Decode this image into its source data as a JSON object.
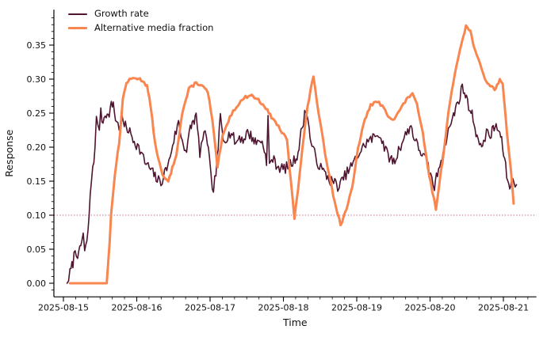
{
  "chart_data": {
    "type": "line",
    "title": "",
    "xlabel": "Time",
    "ylabel": "Response",
    "grid": false,
    "legend_position": "upper-left",
    "background": "#ffffff",
    "axis_color": "#000000",
    "x_tick_labels": [
      "2025-08-15",
      "2025-08-16",
      "2025-08-17",
      "2025-08-18",
      "2025-08-19",
      "2025-08-20",
      "2025-08-21"
    ],
    "x_tick_days": [
      0,
      1,
      2,
      3,
      4,
      5,
      6
    ],
    "x_minor_per_day": 6,
    "y_tick_labels": [
      "0.00",
      "0.05",
      "0.10",
      "0.15",
      "0.20",
      "0.25",
      "0.30",
      "0.35"
    ],
    "y_tick_values": [
      0.0,
      0.05,
      0.1,
      0.15,
      0.2,
      0.25,
      0.3,
      0.35
    ],
    "y_minor_step": 0.01,
    "xlim_days": [
      -0.13,
      6.45
    ],
    "ylim": [
      -0.02,
      0.402
    ],
    "reference_line": {
      "y": 0.1,
      "color": "#c45c78",
      "style": "dotted"
    },
    "series": [
      {
        "name": "Growth rate",
        "color": "#4f1530",
        "line_width": 1.6,
        "noise_amp": 0.008,
        "noise_step": 0.016,
        "seed": 7,
        "points": [
          [
            0.05,
            0.0
          ],
          [
            0.09,
            0.015
          ],
          [
            0.13,
            0.03
          ],
          [
            0.16,
            0.05
          ],
          [
            0.21,
            0.04
          ],
          [
            0.25,
            0.062
          ],
          [
            0.27,
            0.073
          ],
          [
            0.29,
            0.046
          ],
          [
            0.32,
            0.058
          ],
          [
            0.35,
            0.1
          ],
          [
            0.38,
            0.15
          ],
          [
            0.4,
            0.172
          ],
          [
            0.43,
            0.195
          ],
          [
            0.45,
            0.24
          ],
          [
            0.49,
            0.23
          ],
          [
            0.51,
            0.25
          ],
          [
            0.54,
            0.236
          ],
          [
            0.57,
            0.252
          ],
          [
            0.61,
            0.244
          ],
          [
            0.64,
            0.258
          ],
          [
            0.68,
            0.265
          ],
          [
            0.71,
            0.242
          ],
          [
            0.76,
            0.228
          ],
          [
            0.79,
            0.246
          ],
          [
            0.83,
            0.232
          ],
          [
            0.89,
            0.225
          ],
          [
            0.95,
            0.212
          ],
          [
            1.01,
            0.202
          ],
          [
            1.06,
            0.192
          ],
          [
            1.11,
            0.178
          ],
          [
            1.17,
            0.17
          ],
          [
            1.22,
            0.162
          ],
          [
            1.28,
            0.152
          ],
          [
            1.33,
            0.148
          ],
          [
            1.38,
            0.162
          ],
          [
            1.44,
            0.178
          ],
          [
            1.49,
            0.205
          ],
          [
            1.57,
            0.236
          ],
          [
            1.62,
            0.21
          ],
          [
            1.68,
            0.193
          ],
          [
            1.73,
            0.228
          ],
          [
            1.77,
            0.238
          ],
          [
            1.81,
            0.245
          ],
          [
            1.86,
            0.192
          ],
          [
            1.9,
            0.212
          ],
          [
            1.95,
            0.22
          ],
          [
            1.99,
            0.182
          ],
          [
            2.03,
            0.131
          ],
          [
            2.08,
            0.162
          ],
          [
            2.11,
            0.2
          ],
          [
            2.14,
            0.244
          ],
          [
            2.18,
            0.212
          ],
          [
            2.24,
            0.216
          ],
          [
            2.29,
            0.222
          ],
          [
            2.35,
            0.205
          ],
          [
            2.4,
            0.216
          ],
          [
            2.45,
            0.21
          ],
          [
            2.51,
            0.222
          ],
          [
            2.57,
            0.215
          ],
          [
            2.63,
            0.206
          ],
          [
            2.68,
            0.212
          ],
          [
            2.74,
            0.2
          ],
          [
            2.77,
            0.172
          ],
          [
            2.79,
            0.245
          ],
          [
            2.81,
            0.172
          ],
          [
            2.84,
            0.185
          ],
          [
            2.9,
            0.175
          ],
          [
            2.95,
            0.17
          ],
          [
            3.01,
            0.168
          ],
          [
            3.06,
            0.172
          ],
          [
            3.11,
            0.176
          ],
          [
            3.16,
            0.182
          ],
          [
            3.2,
            0.192
          ],
          [
            3.24,
            0.22
          ],
          [
            3.29,
            0.248
          ],
          [
            3.32,
            0.255
          ],
          [
            3.35,
            0.225
          ],
          [
            3.39,
            0.2
          ],
          [
            3.44,
            0.186
          ],
          [
            3.49,
            0.172
          ],
          [
            3.53,
            0.166
          ],
          [
            3.59,
            0.158
          ],
          [
            3.64,
            0.151
          ],
          [
            3.7,
            0.148
          ],
          [
            3.74,
            0.143
          ],
          [
            3.76,
            0.141
          ],
          [
            3.82,
            0.155
          ],
          [
            3.87,
            0.163
          ],
          [
            3.92,
            0.171
          ],
          [
            3.98,
            0.181
          ],
          [
            4.03,
            0.191
          ],
          [
            4.09,
            0.2
          ],
          [
            4.14,
            0.208
          ],
          [
            4.19,
            0.211
          ],
          [
            4.25,
            0.216
          ],
          [
            4.3,
            0.221
          ],
          [
            4.36,
            0.206
          ],
          [
            4.41,
            0.191
          ],
          [
            4.46,
            0.183
          ],
          [
            4.52,
            0.178
          ],
          [
            4.57,
            0.196
          ],
          [
            4.63,
            0.21
          ],
          [
            4.68,
            0.221
          ],
          [
            4.74,
            0.232
          ],
          [
            4.78,
            0.215
          ],
          [
            4.83,
            0.201
          ],
          [
            4.89,
            0.191
          ],
          [
            4.94,
            0.181
          ],
          [
            4.99,
            0.165
          ],
          [
            5.04,
            0.147
          ],
          [
            5.06,
            0.141
          ],
          [
            5.1,
            0.162
          ],
          [
            5.15,
            0.182
          ],
          [
            5.19,
            0.201
          ],
          [
            5.23,
            0.216
          ],
          [
            5.27,
            0.231
          ],
          [
            5.32,
            0.246
          ],
          [
            5.36,
            0.261
          ],
          [
            5.41,
            0.276
          ],
          [
            5.44,
            0.289
          ],
          [
            5.47,
            0.281
          ],
          [
            5.51,
            0.266
          ],
          [
            5.56,
            0.253
          ],
          [
            5.6,
            0.236
          ],
          [
            5.64,
            0.216
          ],
          [
            5.69,
            0.198
          ],
          [
            5.73,
            0.211
          ],
          [
            5.77,
            0.221
          ],
          [
            5.82,
            0.216
          ],
          [
            5.86,
            0.226
          ],
          [
            5.9,
            0.231
          ],
          [
            5.95,
            0.221
          ],
          [
            5.99,
            0.201
          ],
          [
            6.03,
            0.171
          ],
          [
            6.06,
            0.148
          ],
          [
            6.1,
            0.143
          ],
          [
            6.13,
            0.156
          ],
          [
            6.16,
            0.149
          ],
          [
            6.18,
            0.145
          ]
        ]
      },
      {
        "name": "Alternative media fraction",
        "color": "#f9854f",
        "line_width": 3,
        "noise_amp": 0.0022,
        "noise_step": 0.02,
        "seed": 13,
        "points": [
          [
            0.09,
            0.0
          ],
          [
            0.59,
            0.0
          ],
          [
            0.63,
            0.06
          ],
          [
            0.65,
            0.1
          ],
          [
            0.7,
            0.16
          ],
          [
            0.76,
            0.205
          ],
          [
            0.81,
            0.27
          ],
          [
            0.86,
            0.295
          ],
          [
            0.92,
            0.3
          ],
          [
            0.99,
            0.302
          ],
          [
            1.08,
            0.298
          ],
          [
            1.14,
            0.29
          ],
          [
            1.19,
            0.26
          ],
          [
            1.25,
            0.205
          ],
          [
            1.35,
            0.158
          ],
          [
            1.43,
            0.149
          ],
          [
            1.54,
            0.19
          ],
          [
            1.62,
            0.25
          ],
          [
            1.71,
            0.285
          ],
          [
            1.81,
            0.295
          ],
          [
            1.89,
            0.29
          ],
          [
            1.97,
            0.281
          ],
          [
            2.03,
            0.24
          ],
          [
            2.1,
            0.171
          ],
          [
            2.17,
            0.215
          ],
          [
            2.27,
            0.245
          ],
          [
            2.36,
            0.26
          ],
          [
            2.46,
            0.272
          ],
          [
            2.55,
            0.277
          ],
          [
            2.64,
            0.271
          ],
          [
            2.74,
            0.261
          ],
          [
            2.82,
            0.247
          ],
          [
            2.91,
            0.234
          ],
          [
            2.98,
            0.222
          ],
          [
            3.05,
            0.21
          ],
          [
            3.1,
            0.15
          ],
          [
            3.15,
            0.096
          ],
          [
            3.2,
            0.14
          ],
          [
            3.26,
            0.2
          ],
          [
            3.33,
            0.26
          ],
          [
            3.41,
            0.305
          ],
          [
            3.48,
            0.25
          ],
          [
            3.57,
            0.19
          ],
          [
            3.68,
            0.13
          ],
          [
            3.78,
            0.085
          ],
          [
            3.86,
            0.11
          ],
          [
            3.94,
            0.14
          ],
          [
            4.02,
            0.2
          ],
          [
            4.11,
            0.24
          ],
          [
            4.19,
            0.262
          ],
          [
            4.28,
            0.267
          ],
          [
            4.35,
            0.26
          ],
          [
            4.43,
            0.246
          ],
          [
            4.51,
            0.241
          ],
          [
            4.59,
            0.255
          ],
          [
            4.68,
            0.27
          ],
          [
            4.76,
            0.28
          ],
          [
            4.82,
            0.262
          ],
          [
            4.9,
            0.22
          ],
          [
            4.97,
            0.17
          ],
          [
            5.03,
            0.135
          ],
          [
            5.08,
            0.11
          ],
          [
            5.17,
            0.18
          ],
          [
            5.25,
            0.25
          ],
          [
            5.34,
            0.31
          ],
          [
            5.43,
            0.355
          ],
          [
            5.49,
            0.378
          ],
          [
            5.55,
            0.37
          ],
          [
            5.62,
            0.34
          ],
          [
            5.7,
            0.315
          ],
          [
            5.75,
            0.3
          ],
          [
            5.82,
            0.29
          ],
          [
            5.88,
            0.285
          ],
          [
            5.95,
            0.298
          ],
          [
            5.99,
            0.295
          ],
          [
            6.05,
            0.22
          ],
          [
            6.1,
            0.17
          ],
          [
            6.14,
            0.117
          ]
        ]
      }
    ]
  }
}
